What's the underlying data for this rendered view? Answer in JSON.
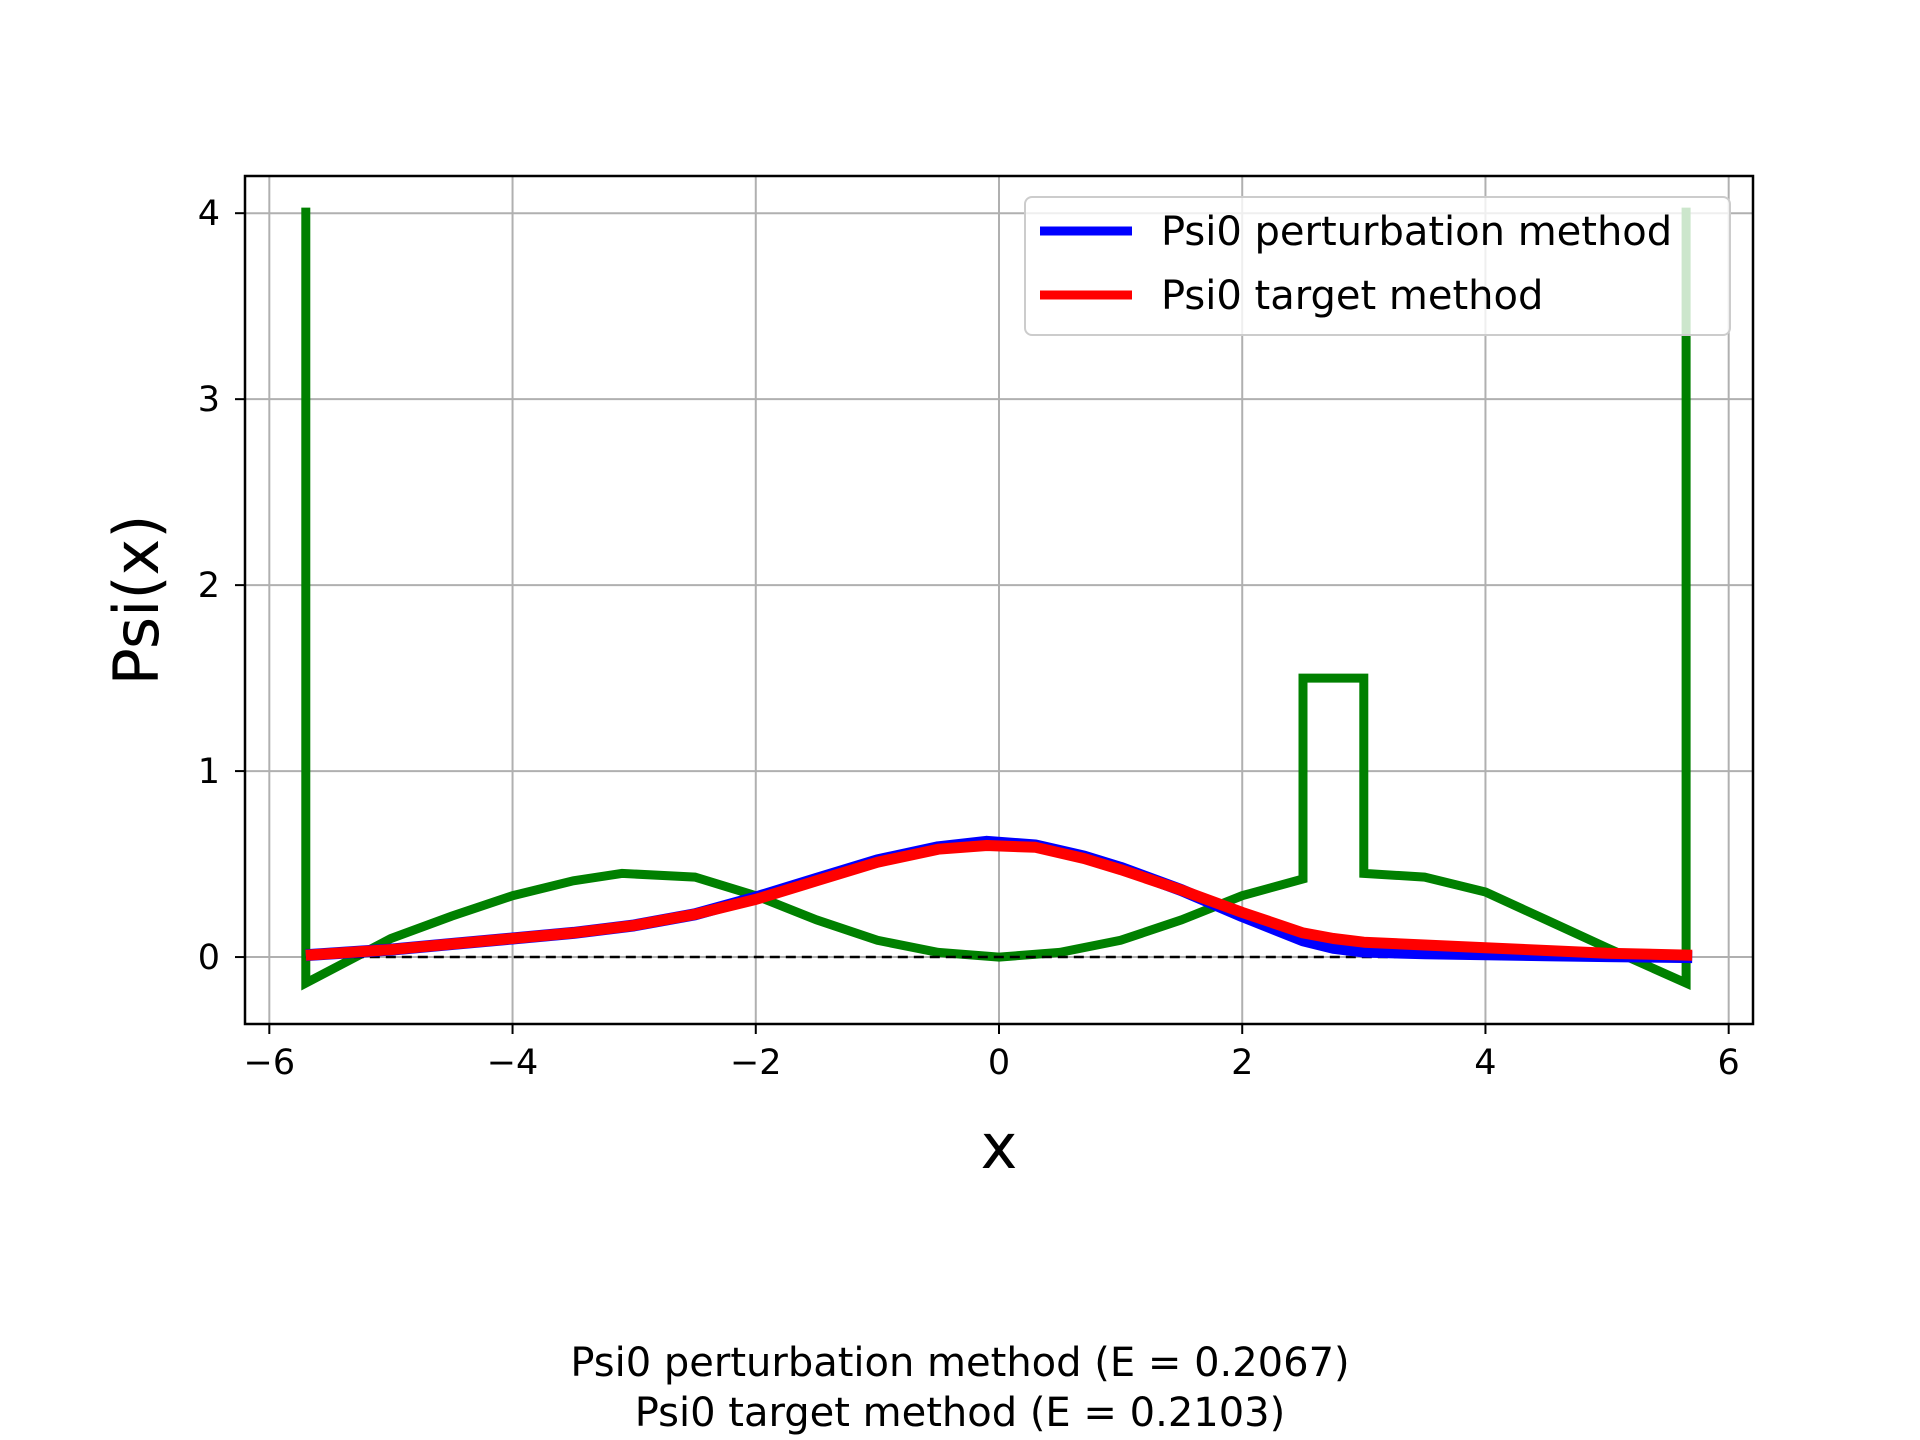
{
  "chart_data": {
    "type": "line",
    "title": "",
    "xlabel": "x",
    "ylabel": "Psi(x)",
    "xlim": [
      -6.2,
      6.2
    ],
    "ylim": [
      -0.36,
      4.2
    ],
    "xticks": [
      -6,
      -4,
      -2,
      0,
      2,
      4,
      6
    ],
    "xtick_labels": [
      "−6",
      "−4",
      "−2",
      "0",
      "2",
      "4",
      "6"
    ],
    "yticks": [
      0,
      1,
      2,
      3,
      4
    ],
    "ytick_labels": [
      "0",
      "1",
      "2",
      "3",
      "4"
    ],
    "grid": true,
    "legend_position": "top-right",
    "colors": {
      "perturbation": "#0000ff",
      "target": "#ff0000",
      "potential": "#008000",
      "baseline": "#000000",
      "grid": "#b0b0b0"
    },
    "series": [
      {
        "name": "Psi0 perturbation method",
        "legend": true,
        "x": [
          -5.7,
          -5.0,
          -4.5,
          -4.0,
          -3.5,
          -3.0,
          -2.5,
          -2.0,
          -1.5,
          -1.0,
          -0.5,
          -0.1,
          0.3,
          0.7,
          1.0,
          1.5,
          2.0,
          2.5,
          2.75,
          3.0,
          3.5,
          4.0,
          4.5,
          5.0,
          5.7
        ],
        "y": [
          0.01,
          0.04,
          0.07,
          0.1,
          0.13,
          0.17,
          0.23,
          0.32,
          0.42,
          0.52,
          0.59,
          0.62,
          0.6,
          0.54,
          0.48,
          0.36,
          0.22,
          0.09,
          0.05,
          0.03,
          0.02,
          0.015,
          0.01,
          0.005,
          0.0
        ]
      },
      {
        "name": "Psi0 target method",
        "legend": true,
        "x": [
          -5.7,
          -5.0,
          -4.5,
          -4.0,
          -3.5,
          -3.0,
          -2.5,
          -2.0,
          -1.5,
          -1.0,
          -0.5,
          -0.1,
          0.3,
          0.7,
          1.0,
          1.5,
          2.0,
          2.5,
          2.75,
          3.0,
          3.5,
          4.0,
          4.5,
          5.0,
          5.7
        ],
        "y": [
          0.01,
          0.04,
          0.07,
          0.1,
          0.13,
          0.17,
          0.23,
          0.31,
          0.41,
          0.51,
          0.58,
          0.6,
          0.59,
          0.53,
          0.47,
          0.36,
          0.24,
          0.13,
          0.1,
          0.08,
          0.065,
          0.05,
          0.035,
          0.02,
          0.01
        ]
      },
      {
        "name": "",
        "legend": false,
        "x": [
          -5.7,
          -5.7,
          -5.7,
          -5.0,
          -4.5,
          -4.0,
          -3.5,
          -3.1,
          -2.5,
          -2.0,
          -1.5,
          -1.0,
          -0.5,
          0.0,
          0.5,
          1.0,
          1.5,
          2.0,
          2.5,
          2.5,
          3.0,
          3.0,
          3.5,
          4.0,
          4.5,
          5.0,
          5.65,
          5.65,
          5.65
        ],
        "y": [
          4.03,
          0.0,
          -0.14,
          0.1,
          0.22,
          0.33,
          0.41,
          0.45,
          0.43,
          0.33,
          0.2,
          0.09,
          0.025,
          0.0,
          0.025,
          0.09,
          0.2,
          0.33,
          0.42,
          1.5,
          1.5,
          0.45,
          0.43,
          0.35,
          0.2,
          0.05,
          -0.14,
          0.0,
          4.03
        ]
      }
    ],
    "baseline": {
      "y": 0,
      "x": [
        -5.7,
        5.7
      ],
      "style": "dashed"
    },
    "caption": [
      "Psi0 perturbation method (E = 0.2067)",
      "Psi0 target method (E = 0.2103)"
    ]
  }
}
